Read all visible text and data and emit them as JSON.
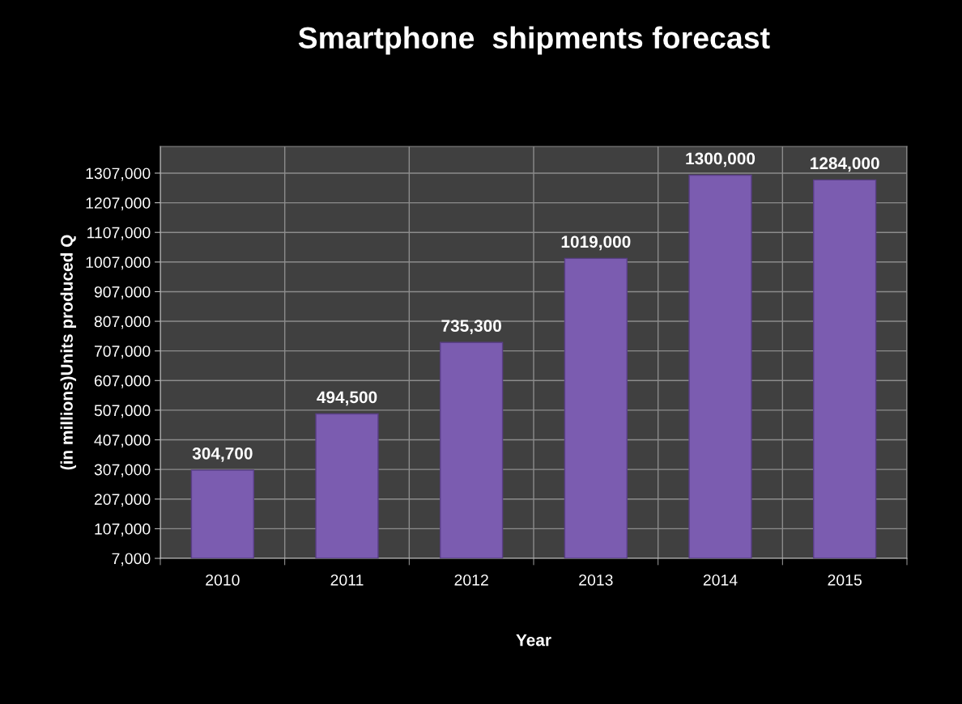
{
  "chart_data": {
    "type": "bar",
    "title": "Smartphone  shipments forecast",
    "xlabel": "Year",
    "ylabel": "(in millions)Units produced Q",
    "categories": [
      "2010",
      "2011",
      "2012",
      "2013",
      "2014",
      "2015"
    ],
    "values": [
      304700,
      494500,
      735300,
      1019000,
      1300000,
      1284000
    ],
    "value_labels": [
      "304,700",
      "494,500",
      "735,300",
      "1019,000",
      "1300,000",
      "1284,000"
    ],
    "color": "#7b5cb0",
    "ylim": [
      7000,
      1397000
    ],
    "yticks": [
      {
        "value": 7000,
        "label": "7,000"
      },
      {
        "value": 107000,
        "label": "107,000"
      },
      {
        "value": 207000,
        "label": "207,000"
      },
      {
        "value": 307000,
        "label": "307,000"
      },
      {
        "value": 407000,
        "label": "407,000"
      },
      {
        "value": 507000,
        "label": "507,000"
      },
      {
        "value": 607000,
        "label": "607,000"
      },
      {
        "value": 707000,
        "label": "707,000"
      },
      {
        "value": 807000,
        "label": "807,000"
      },
      {
        "value": 907000,
        "label": "907,000"
      },
      {
        "value": 1007000,
        "label": "1007,000"
      },
      {
        "value": 1107000,
        "label": "1107,000"
      },
      {
        "value": 1207000,
        "label": "1207,000"
      },
      {
        "value": 1307000,
        "label": "1307,000"
      }
    ],
    "grid": true,
    "legend": false
  }
}
